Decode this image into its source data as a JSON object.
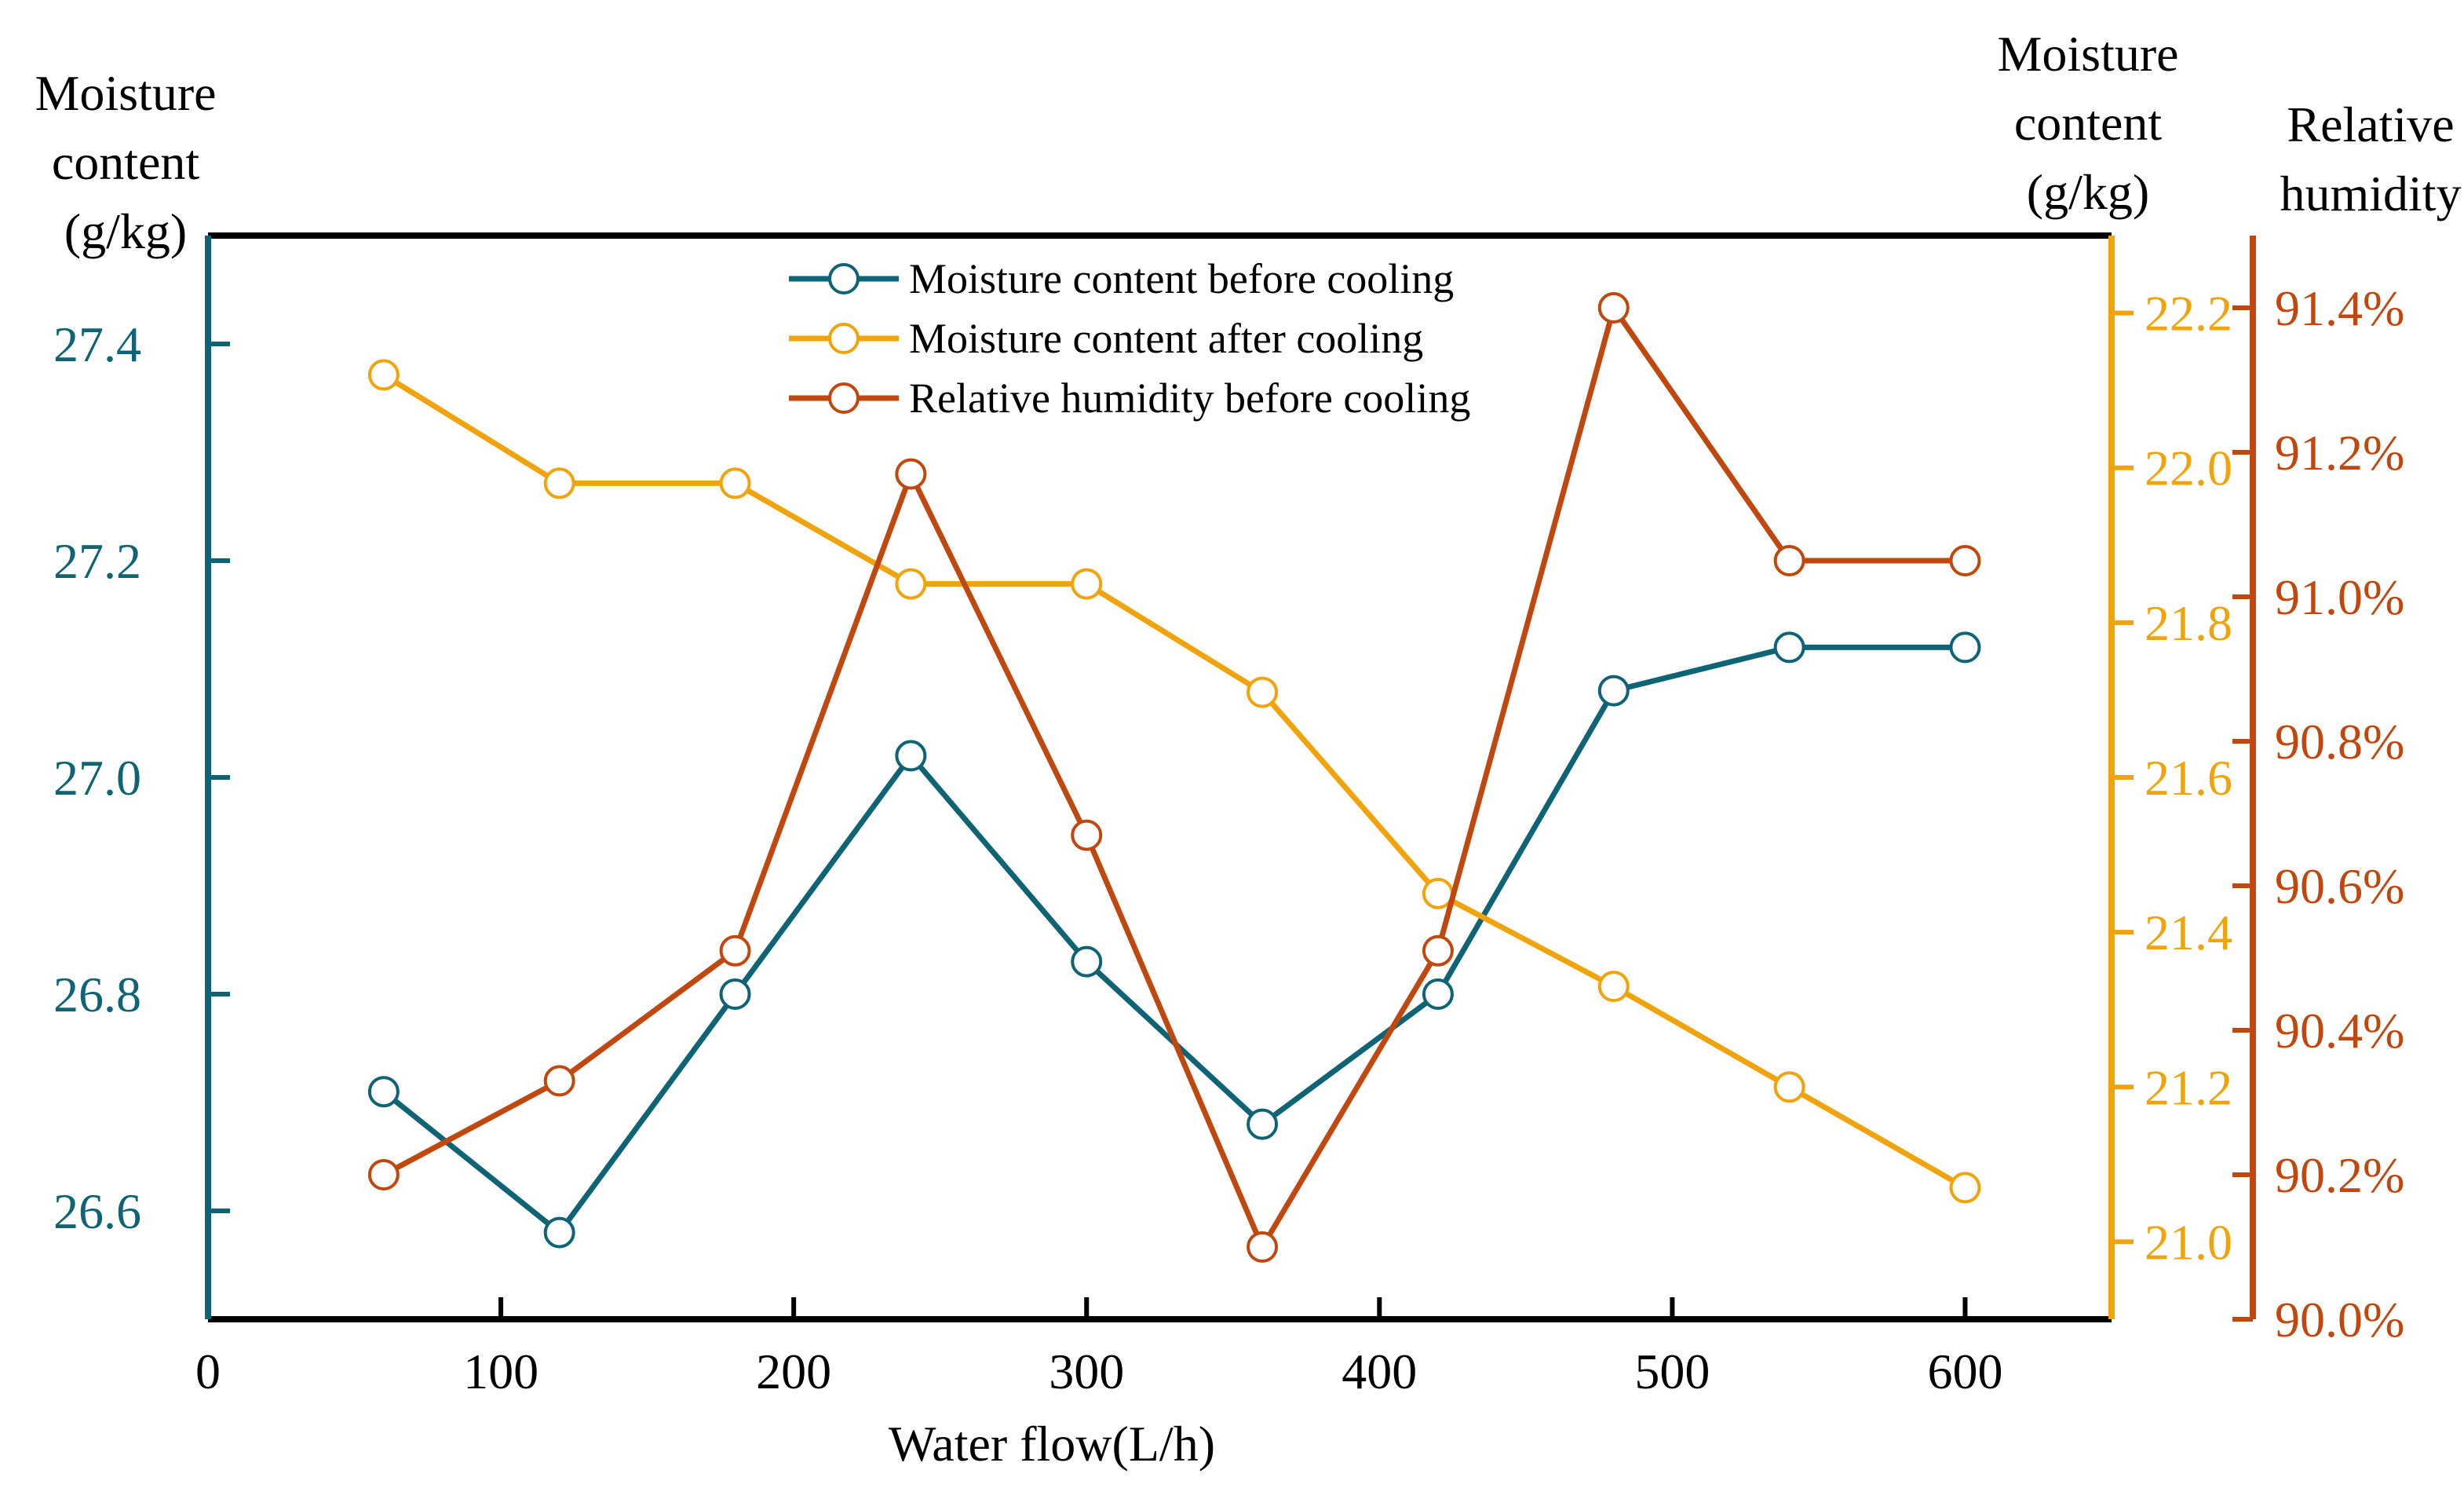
{
  "colors": {
    "before": "#0E6374",
    "after": "#F0A30A",
    "rh": "#C0470E",
    "axis": "#000000",
    "background": "#ffffff"
  },
  "chart_data": {
    "type": "line",
    "title": "",
    "xlabel": "Water flow(L/h)",
    "xlim": [
      0,
      650
    ],
    "xticks": [
      0,
      100,
      200,
      300,
      400,
      500,
      600
    ],
    "x": [
      60,
      120,
      180,
      240,
      300,
      360,
      420,
      480,
      540,
      600
    ],
    "y_axes": {
      "left": {
        "label_lines": [
          "Moisture",
          "content",
          "(g/kg)"
        ],
        "ylim": [
          26.5,
          27.5
        ],
        "ticks": [
          "26.6",
          "26.8",
          "27.0",
          "27.2",
          "27.4"
        ]
      },
      "right1": {
        "label_lines": [
          "Moisture",
          "content",
          "(g/kg)"
        ],
        "ylim": [
          20.9,
          22.3
        ],
        "ticks": [
          "21.0",
          "21.2",
          "21.4",
          "21.6",
          "21.8",
          "22.0",
          "22.2"
        ]
      },
      "right2": {
        "label_lines": [
          "Relative",
          "humidity"
        ],
        "ylim": [
          90.0,
          91.5
        ],
        "ticks": [
          "90.0%",
          "90.2%",
          "90.4%",
          "90.6%",
          "90.8%",
          "91.0%",
          "91.2%",
          "91.4%"
        ]
      }
    },
    "series": [
      {
        "key": "before",
        "name": "Moisture content before cooling",
        "axis": "left",
        "values": [
          26.71,
          26.58,
          26.8,
          27.02,
          26.83,
          26.68,
          26.8,
          27.08,
          27.12,
          27.12
        ]
      },
      {
        "key": "after",
        "name": "Moisture content after cooling",
        "axis": "right1",
        "values": [
          22.12,
          21.98,
          21.98,
          21.85,
          21.85,
          21.71,
          21.45,
          21.33,
          21.2,
          21.07
        ]
      },
      {
        "key": "rh",
        "name": "Relative humidity before cooling",
        "axis": "right2",
        "values": [
          90.2,
          90.33,
          90.51,
          91.17,
          90.67,
          90.1,
          90.51,
          91.4,
          91.05,
          91.05
        ]
      }
    ],
    "legend_position": "top-center",
    "grid": false
  }
}
